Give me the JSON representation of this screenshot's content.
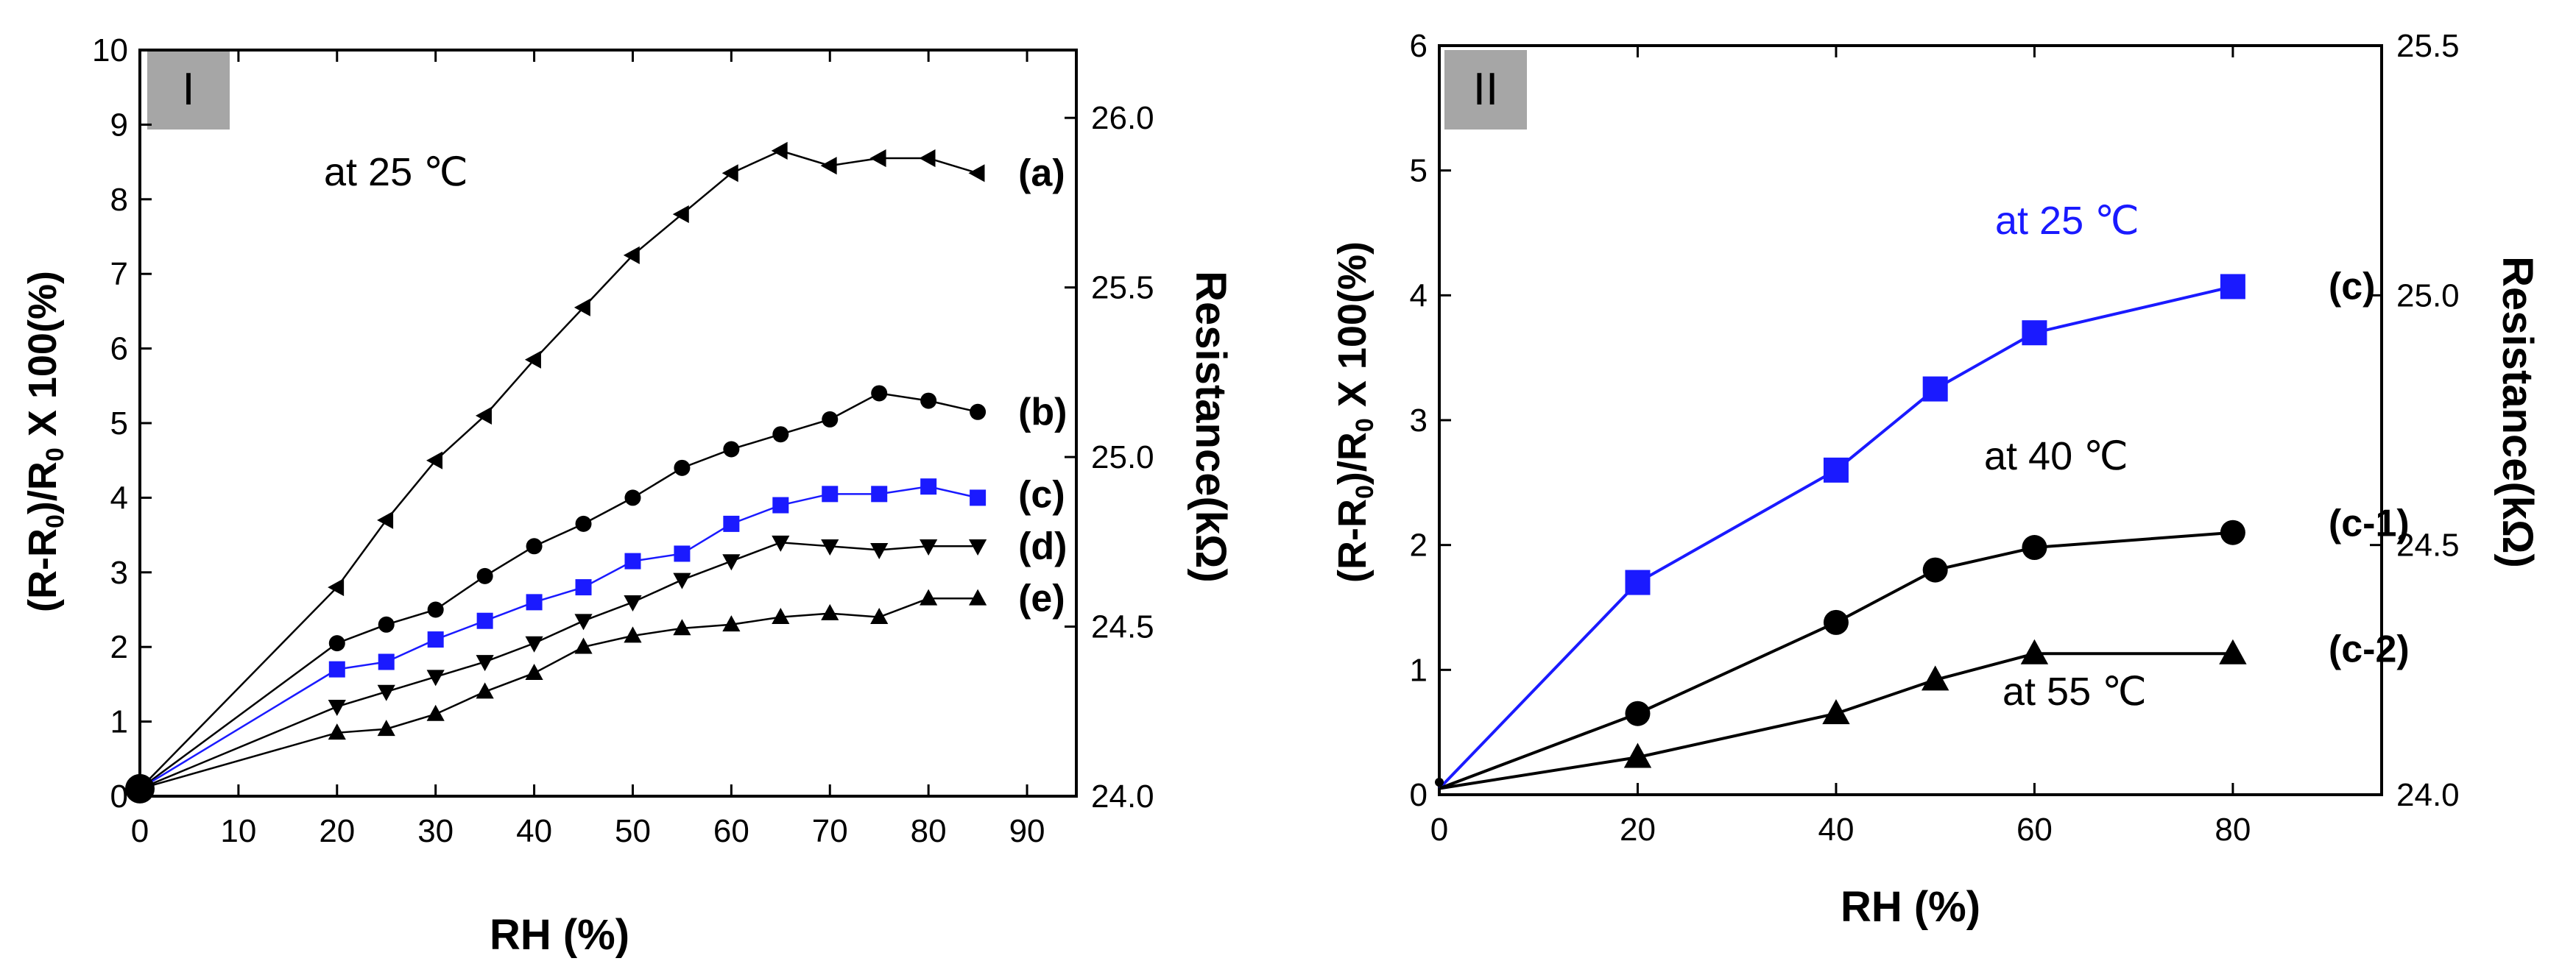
{
  "chart_data": [
    {
      "type": "line",
      "panel_label": "I",
      "annotation": "at 25 ℃",
      "xlabel": "RH (%)",
      "ylabel": "(R-R0)/R0 X 100(%)",
      "y2label": "Resistance(kΩ)",
      "xlim": [
        0,
        95
      ],
      "ylim": [
        0,
        10
      ],
      "y2lim": [
        24.0,
        26.2
      ],
      "xticks": [
        "0",
        "10",
        "20",
        "30",
        "40",
        "50",
        "60",
        "70",
        "80",
        "90"
      ],
      "yticks": [
        "0",
        "1",
        "2",
        "3",
        "4",
        "5",
        "6",
        "7",
        "8",
        "9",
        "10"
      ],
      "y2ticks": [
        "24.0",
        "24.5",
        "25.0",
        "25.5",
        "26.0"
      ],
      "series": [
        {
          "name": "(a)",
          "color": "#000000",
          "marker": "triangle-left",
          "x": [
            0,
            20,
            25,
            30,
            35,
            40,
            45,
            50,
            55,
            60,
            65,
            70,
            75,
            80,
            85
          ],
          "y": [
            0.1,
            2.8,
            3.7,
            4.5,
            5.1,
            5.85,
            6.55,
            7.25,
            7.8,
            8.35,
            8.65,
            8.45,
            8.55,
            8.55,
            8.35
          ]
        },
        {
          "name": "(b)",
          "color": "#000000",
          "marker": "circle",
          "x": [
            0,
            20,
            25,
            30,
            35,
            40,
            45,
            50,
            55,
            60,
            65,
            70,
            75,
            80,
            85
          ],
          "y": [
            0.1,
            2.05,
            2.3,
            2.5,
            2.95,
            3.35,
            3.65,
            4.0,
            4.4,
            4.65,
            4.85,
            5.05,
            5.4,
            5.3,
            5.15
          ]
        },
        {
          "name": "(c)",
          "color": "#1a1aff",
          "marker": "square",
          "x": [
            0,
            20,
            25,
            30,
            35,
            40,
            45,
            50,
            55,
            60,
            65,
            70,
            75,
            80,
            85
          ],
          "y": [
            0.1,
            1.7,
            1.8,
            2.1,
            2.35,
            2.6,
            2.8,
            3.15,
            3.25,
            3.65,
            3.9,
            4.05,
            4.05,
            4.15,
            4.0
          ]
        },
        {
          "name": "(d)",
          "color": "#000000",
          "marker": "triangle-down",
          "x": [
            0,
            20,
            25,
            30,
            35,
            40,
            45,
            50,
            55,
            60,
            65,
            70,
            75,
            80,
            85
          ],
          "y": [
            0.1,
            1.2,
            1.4,
            1.6,
            1.8,
            2.05,
            2.35,
            2.6,
            2.9,
            3.15,
            3.4,
            3.35,
            3.3,
            3.35,
            3.35
          ]
        },
        {
          "name": "(e)",
          "color": "#000000",
          "marker": "triangle-up",
          "x": [
            0,
            20,
            25,
            30,
            35,
            40,
            45,
            50,
            55,
            60,
            65,
            70,
            75,
            80,
            85
          ],
          "y": [
            0.1,
            0.85,
            0.9,
            1.1,
            1.4,
            1.65,
            2.0,
            2.15,
            2.25,
            2.3,
            2.4,
            2.45,
            2.4,
            2.65,
            2.65
          ]
        }
      ]
    },
    {
      "type": "line",
      "panel_label": "II",
      "annotations": [
        "at 25 ℃",
        "at 40 ℃",
        "at 55 ℃"
      ],
      "xlabel": "RH (%)",
      "ylabel": "(R-R0)/R0 X 100(%)",
      "y2label": "Resistance(kΩ)",
      "xlim": [
        0,
        95
      ],
      "ylim": [
        0,
        6
      ],
      "y2lim": [
        24.0,
        25.5
      ],
      "xticks": [
        "0",
        "20",
        "40",
        "60",
        "80"
      ],
      "yticks": [
        "0",
        "1",
        "2",
        "3",
        "4",
        "5",
        "6"
      ],
      "y2ticks": [
        "24.0",
        "24.5",
        "25.0",
        "25.5"
      ],
      "series": [
        {
          "name": "(c)",
          "color": "#1a1aff",
          "marker": "square",
          "x": [
            0,
            20,
            40,
            50,
            60,
            80
          ],
          "y": [
            0.05,
            1.7,
            2.6,
            3.25,
            3.7,
            4.07
          ]
        },
        {
          "name": "(c-1)",
          "color": "#000000",
          "marker": "circle",
          "x": [
            0,
            20,
            40,
            50,
            60,
            80
          ],
          "y": [
            0.05,
            0.65,
            1.38,
            1.8,
            1.98,
            2.1
          ]
        },
        {
          "name": "(c-2)",
          "color": "#000000",
          "marker": "triangle-up",
          "x": [
            0,
            20,
            40,
            50,
            60,
            80
          ],
          "y": [
            0.05,
            0.3,
            0.65,
            0.92,
            1.13,
            1.13
          ]
        }
      ]
    }
  ]
}
